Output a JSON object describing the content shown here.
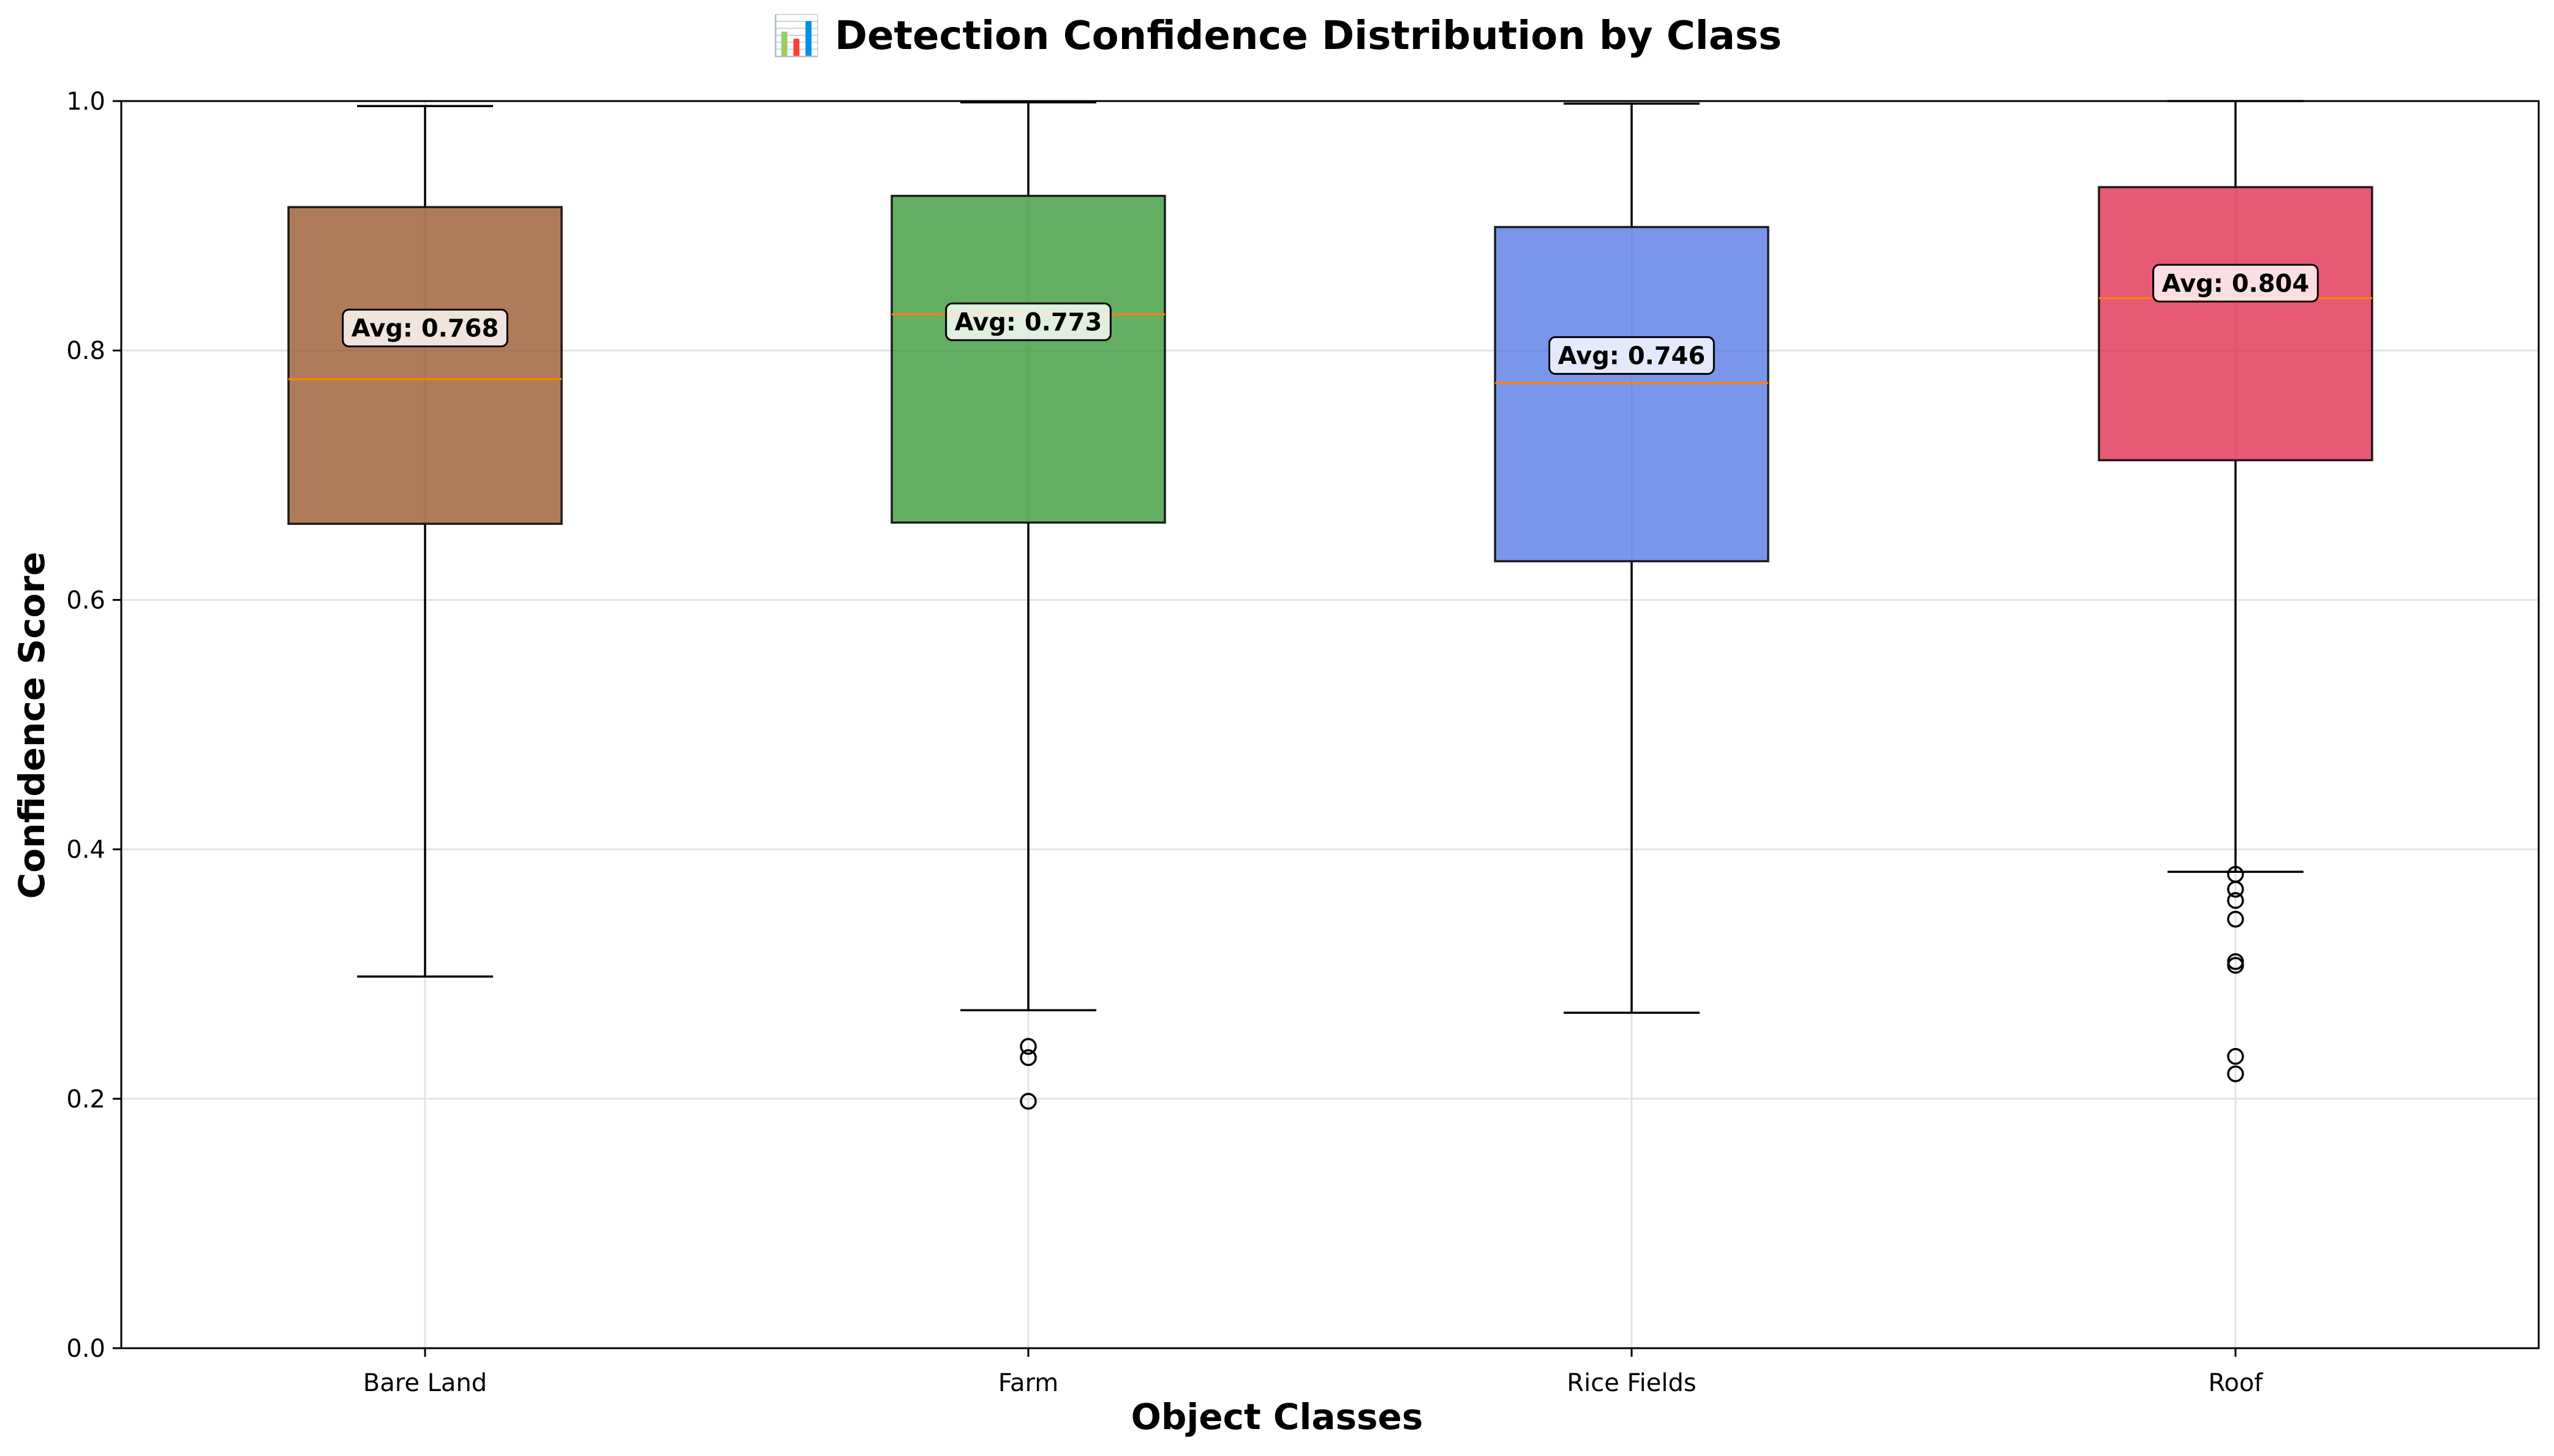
{
  "chart_data": {
    "type": "box",
    "title": "📊 Detection Confidence Distribution by Class",
    "xlabel": "Object Classes",
    "ylabel": "Confidence Score",
    "ylim": [
      0,
      1
    ],
    "yticks": [
      "0.0",
      "0.2",
      "0.4",
      "0.6",
      "0.8",
      "1.0"
    ],
    "grid": true,
    "categories": [
      "Bare Land",
      "Farm",
      "Rice Fields",
      "Roof"
    ],
    "boxes": [
      {
        "name": "Bare Land",
        "color": "#8B4513",
        "whisker_low": 0.298,
        "q1": 0.661,
        "median": 0.777,
        "q3": 0.915,
        "whisker_high": 0.996,
        "mean": 0.768,
        "avg_label": "Avg: 0.768",
        "outliers": []
      },
      {
        "name": "Farm",
        "color": "#228B22",
        "whisker_low": 0.271,
        "q1": 0.662,
        "median": 0.829,
        "q3": 0.924,
        "whisker_high": 0.999,
        "mean": 0.773,
        "avg_label": "Avg: 0.773",
        "outliers": [
          0.242,
          0.233,
          0.198
        ]
      },
      {
        "name": "Rice Fields",
        "color": "#4169E1",
        "whisker_low": 0.269,
        "q1": 0.631,
        "median": 0.774,
        "q3": 0.899,
        "whisker_high": 0.998,
        "mean": 0.746,
        "avg_label": "Avg: 0.746",
        "outliers": []
      },
      {
        "name": "Roof",
        "color": "#DC143C",
        "whisker_low": 0.382,
        "q1": 0.712,
        "median": 0.842,
        "q3": 0.931,
        "whisker_high": 1.0,
        "mean": 0.804,
        "avg_label": "Avg: 0.804",
        "outliers": [
          0.38,
          0.368,
          0.359,
          0.344,
          0.31,
          0.307,
          0.234,
          0.22
        ]
      }
    ]
  }
}
